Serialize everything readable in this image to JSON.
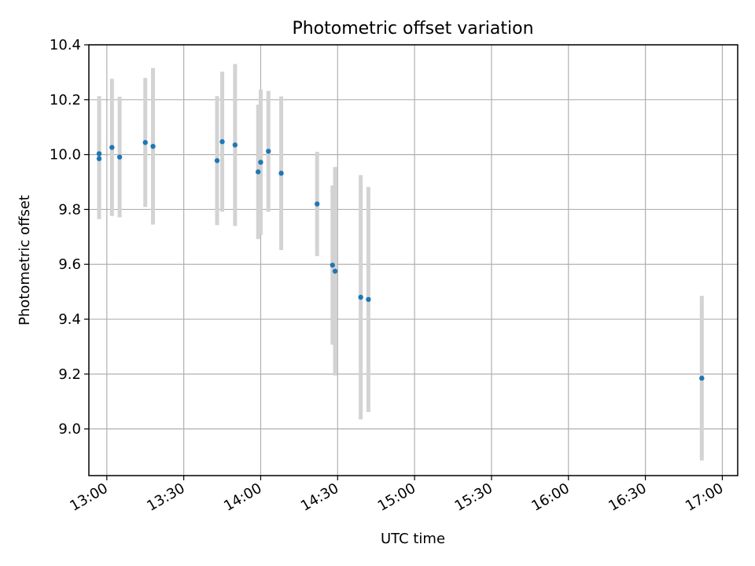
{
  "chart_data": {
    "type": "scatter",
    "title": "Photometric offset variation",
    "xlabel": "UTC time",
    "ylabel": "Photometric offset",
    "x_ticks": [
      "13:00",
      "13:30",
      "14:00",
      "14:30",
      "15:00",
      "15:30",
      "16:00",
      "16:30",
      "17:00"
    ],
    "y_ticks": [
      "9.0",
      "9.2",
      "9.4",
      "9.6",
      "9.8",
      "10.0",
      "10.2",
      "10.4"
    ],
    "xlim": [
      "12:53",
      "17:06"
    ],
    "ylim": [
      8.83,
      10.4
    ],
    "grid": true,
    "point_color": "#1f77b4",
    "errorbar_color": "#d3d3d3",
    "points": [
      {
        "x": "12:57",
        "y": 9.985,
        "err": 0.22
      },
      {
        "x": "12:57",
        "y": 10.003,
        "err": 0.21
      },
      {
        "x": "13:02",
        "y": 10.026,
        "err": 0.25
      },
      {
        "x": "13:05",
        "y": 9.991,
        "err": 0.22
      },
      {
        "x": "13:15",
        "y": 10.044,
        "err": 0.235
      },
      {
        "x": "13:18",
        "y": 10.03,
        "err": 0.285
      },
      {
        "x": "13:43",
        "y": 9.978,
        "err": 0.235
      },
      {
        "x": "13:45",
        "y": 10.047,
        "err": 0.255
      },
      {
        "x": "13:50",
        "y": 10.035,
        "err": 0.295
      },
      {
        "x": "13:59",
        "y": 9.937,
        "err": 0.245
      },
      {
        "x": "14:00",
        "y": 9.972,
        "err": 0.265
      },
      {
        "x": "14:03",
        "y": 10.012,
        "err": 0.22
      },
      {
        "x": "14:08",
        "y": 9.932,
        "err": 0.28
      },
      {
        "x": "14:22",
        "y": 9.82,
        "err": 0.19
      },
      {
        "x": "14:28",
        "y": 9.597,
        "err": 0.29
      },
      {
        "x": "14:29",
        "y": 9.575,
        "err": 0.38
      },
      {
        "x": "14:39",
        "y": 9.48,
        "err": 0.445
      },
      {
        "x": "14:42",
        "y": 9.472,
        "err": 0.41
      },
      {
        "x": "16:52",
        "y": 9.185,
        "err": 0.3
      }
    ]
  }
}
